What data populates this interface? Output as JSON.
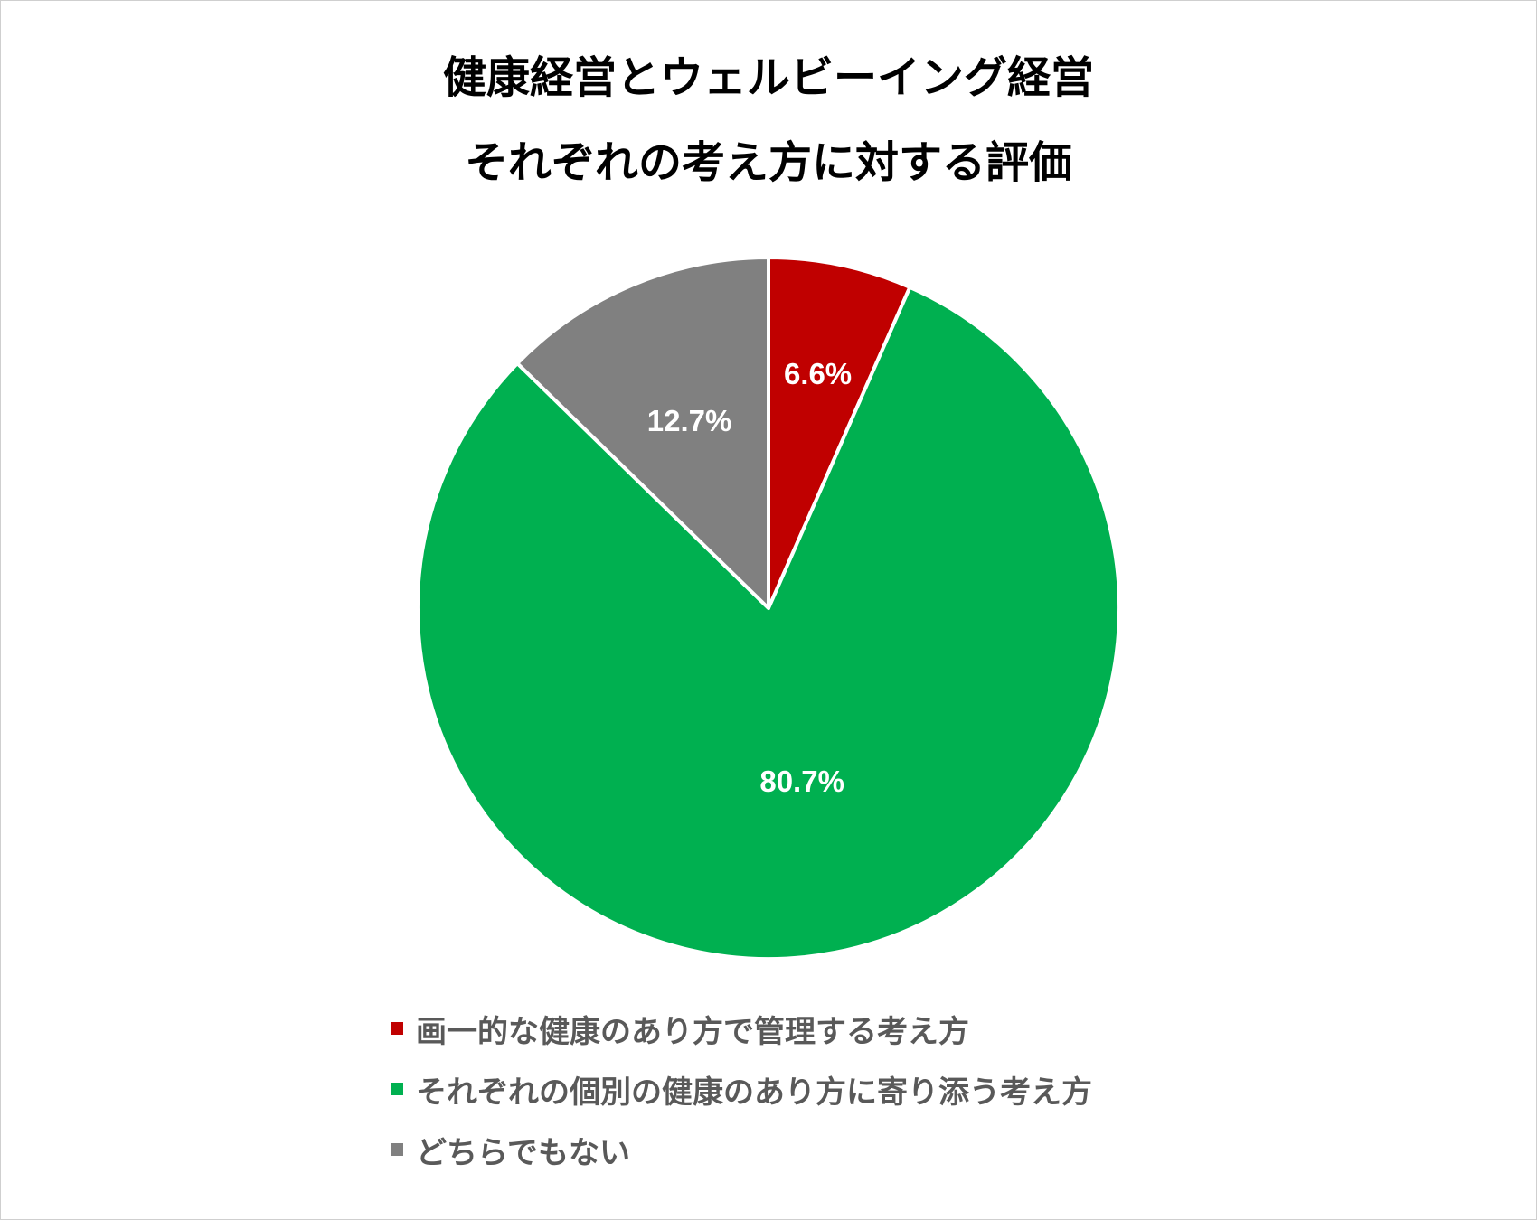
{
  "chart_data": {
    "type": "pie",
    "title_lines": [
      "健康経営とウェルビーイング経営",
      "それぞれの考え方に対する評価"
    ],
    "slices": [
      {
        "label": "画一的な健康のあり方で管理する考え方",
        "value": 6.6,
        "value_label": "6.6%",
        "color": "#C00000"
      },
      {
        "label": "それぞれの個別の健康のあり方に寄り添う考え方",
        "value": 80.7,
        "value_label": "80.7%",
        "color": "#00B050"
      },
      {
        "label": "どちらでもない",
        "value": 12.7,
        "value_label": "12.7%",
        "color": "#808080"
      }
    ],
    "start_angle": "12 o'clock",
    "direction": "clockwise",
    "legend_position": "bottom"
  },
  "style": {
    "slice_border_color": "#FFFFFF",
    "data_label_color": "#FFFFFF",
    "legend_text_color": "#595959",
    "title_color": "#000000"
  }
}
